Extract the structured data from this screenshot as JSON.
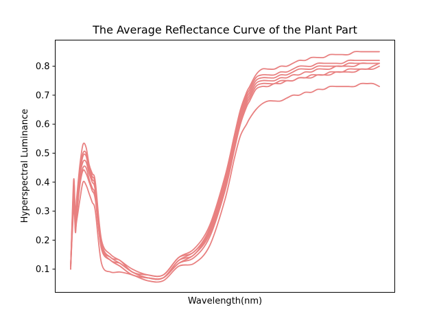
{
  "chart_data": {
    "type": "line",
    "title": "The Average Reflectance Curve of the Plant Part",
    "xlabel": "Wavelength(nm)",
    "ylabel": "Hyperspectral Luminance",
    "x_ticks_visible": false,
    "ylim": [
      0.02,
      0.89
    ],
    "y_ticks": [
      0.1,
      0.2,
      0.3,
      0.4,
      0.5,
      0.6,
      0.7,
      0.8
    ],
    "y_tick_labels": [
      "0.1",
      "0.2",
      "0.3",
      "0.4",
      "0.5",
      "0.6",
      "0.7",
      "0.8"
    ],
    "grid": false,
    "legend": "none",
    "color": "#e88080",
    "x": [
      0,
      0.01,
      0.015,
      0.02,
      0.03,
      0.04,
      0.05,
      0.06,
      0.07,
      0.08,
      0.1,
      0.13,
      0.16,
      0.2,
      0.25,
      0.3,
      0.35,
      0.4,
      0.45,
      0.5,
      0.53,
      0.55,
      0.57,
      0.58,
      0.6,
      0.62,
      0.64,
      0.66,
      0.68,
      0.7,
      0.72,
      0.74,
      0.76,
      0.78,
      0.8,
      0.82,
      0.84,
      0.86,
      0.88,
      0.9,
      0.92,
      0.94,
      0.96,
      0.98,
      1.0
    ],
    "series": [
      {
        "values": [
          0.11,
          0.39,
          0.29,
          0.35,
          0.46,
          0.53,
          0.52,
          0.46,
          0.43,
          0.4,
          0.2,
          0.15,
          0.13,
          0.1,
          0.08,
          0.08,
          0.14,
          0.17,
          0.25,
          0.42,
          0.56,
          0.65,
          0.71,
          0.73,
          0.77,
          0.79,
          0.79,
          0.79,
          0.8,
          0.8,
          0.81,
          0.82,
          0.82,
          0.83,
          0.83,
          0.83,
          0.84,
          0.84,
          0.84,
          0.84,
          0.85,
          0.85,
          0.85,
          0.85,
          0.85
        ]
      },
      {
        "values": [
          0.11,
          0.37,
          0.28,
          0.33,
          0.44,
          0.5,
          0.5,
          0.45,
          0.42,
          0.39,
          0.19,
          0.14,
          0.13,
          0.09,
          0.08,
          0.08,
          0.14,
          0.16,
          0.24,
          0.41,
          0.55,
          0.64,
          0.7,
          0.72,
          0.76,
          0.77,
          0.77,
          0.77,
          0.78,
          0.78,
          0.79,
          0.8,
          0.8,
          0.8,
          0.81,
          0.81,
          0.81,
          0.81,
          0.81,
          0.82,
          0.82,
          0.82,
          0.82,
          0.82,
          0.82
        ]
      },
      {
        "values": [
          0.11,
          0.36,
          0.28,
          0.32,
          0.43,
          0.49,
          0.49,
          0.44,
          0.41,
          0.38,
          0.18,
          0.14,
          0.12,
          0.09,
          0.07,
          0.07,
          0.13,
          0.16,
          0.23,
          0.4,
          0.54,
          0.63,
          0.69,
          0.71,
          0.75,
          0.76,
          0.76,
          0.76,
          0.77,
          0.77,
          0.78,
          0.79,
          0.79,
          0.79,
          0.8,
          0.8,
          0.8,
          0.8,
          0.8,
          0.81,
          0.81,
          0.81,
          0.81,
          0.81,
          0.81
        ]
      },
      {
        "values": [
          0.11,
          0.35,
          0.27,
          0.31,
          0.42,
          0.47,
          0.47,
          0.43,
          0.4,
          0.37,
          0.18,
          0.13,
          0.12,
          0.09,
          0.07,
          0.07,
          0.13,
          0.15,
          0.23,
          0.39,
          0.53,
          0.62,
          0.68,
          0.7,
          0.74,
          0.75,
          0.75,
          0.75,
          0.76,
          0.76,
          0.77,
          0.77,
          0.78,
          0.78,
          0.79,
          0.79,
          0.79,
          0.8,
          0.8,
          0.8,
          0.8,
          0.81,
          0.81,
          0.81,
          0.81
        ]
      },
      {
        "values": [
          0.1,
          0.33,
          0.26,
          0.3,
          0.4,
          0.45,
          0.45,
          0.41,
          0.38,
          0.35,
          0.17,
          0.13,
          0.11,
          0.08,
          0.07,
          0.07,
          0.12,
          0.15,
          0.22,
          0.38,
          0.52,
          0.61,
          0.67,
          0.69,
          0.73,
          0.74,
          0.74,
          0.74,
          0.75,
          0.75,
          0.75,
          0.76,
          0.76,
          0.77,
          0.77,
          0.77,
          0.78,
          0.78,
          0.78,
          0.79,
          0.79,
          0.79,
          0.79,
          0.79,
          0.8
        ]
      },
      {
        "values": [
          0.1,
          0.41,
          0.23,
          0.29,
          0.39,
          0.44,
          0.43,
          0.4,
          0.37,
          0.34,
          0.17,
          0.13,
          0.11,
          0.08,
          0.07,
          0.07,
          0.12,
          0.14,
          0.21,
          0.37,
          0.51,
          0.6,
          0.66,
          0.68,
          0.72,
          0.73,
          0.73,
          0.74,
          0.74,
          0.75,
          0.75,
          0.76,
          0.76,
          0.76,
          0.77,
          0.77,
          0.77,
          0.78,
          0.78,
          0.78,
          0.78,
          0.79,
          0.79,
          0.8,
          0.81
        ]
      },
      {
        "values": [
          0.11,
          0.31,
          0.24,
          0.27,
          0.34,
          0.4,
          0.39,
          0.36,
          0.33,
          0.3,
          0.12,
          0.09,
          0.09,
          0.08,
          0.06,
          0.06,
          0.11,
          0.12,
          0.18,
          0.34,
          0.48,
          0.56,
          0.6,
          0.62,
          0.65,
          0.67,
          0.68,
          0.68,
          0.68,
          0.69,
          0.7,
          0.7,
          0.71,
          0.71,
          0.72,
          0.72,
          0.73,
          0.73,
          0.73,
          0.73,
          0.73,
          0.74,
          0.74,
          0.74,
          0.73
        ]
      }
    ]
  }
}
